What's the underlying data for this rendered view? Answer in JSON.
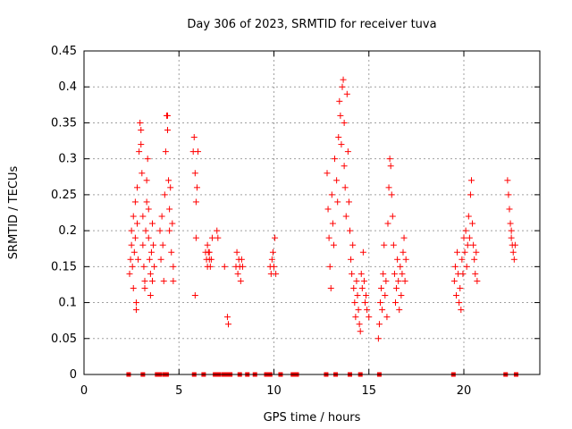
{
  "chart_data": {
    "type": "scatter",
    "title": "Day 306 of 2023, SRMTID for receiver tuva",
    "xlabel": "GPS time / hours",
    "ylabel": "SRMTID / TECUs",
    "xlim": [
      0,
      24
    ],
    "ylim": [
      0,
      0.45
    ],
    "x_ticks": [
      0,
      5,
      10,
      15,
      20
    ],
    "x_tick_labels": [
      "0",
      "5",
      "10",
      "15",
      "20"
    ],
    "y_ticks": [
      0,
      0.05,
      0.1,
      0.15,
      0.2,
      0.25,
      0.3,
      0.35,
      0.4,
      0.45
    ],
    "y_tick_labels": [
      "0",
      "0.05",
      "0.1",
      "0.15",
      "0.2",
      "0.25",
      "0.3",
      "0.35",
      "0.4",
      "0.45"
    ],
    "grid": true,
    "marker_color": "#ff0000",
    "series": [
      {
        "marker": "plus",
        "points": [
          [
            2.4,
            0.14
          ],
          [
            2.45,
            0.16
          ],
          [
            2.5,
            0.18
          ],
          [
            2.5,
            0.2
          ],
          [
            2.55,
            0.15
          ],
          [
            2.6,
            0.22
          ],
          [
            2.6,
            0.12
          ],
          [
            2.65,
            0.17
          ],
          [
            2.7,
            0.19
          ],
          [
            2.7,
            0.24
          ],
          [
            2.75,
            0.1
          ],
          [
            2.75,
            0.09
          ],
          [
            2.8,
            0.21
          ],
          [
            2.8,
            0.26
          ],
          [
            2.85,
            0.16
          ],
          [
            2.9,
            0.31
          ],
          [
            2.95,
            0.35
          ],
          [
            3.0,
            0.34
          ],
          [
            3.0,
            0.32
          ],
          [
            3.05,
            0.28
          ],
          [
            3.1,
            0.22
          ],
          [
            3.1,
            0.18
          ],
          [
            3.15,
            0.15
          ],
          [
            3.2,
            0.13
          ],
          [
            3.2,
            0.12
          ],
          [
            3.25,
            0.2
          ],
          [
            3.3,
            0.24
          ],
          [
            3.3,
            0.27
          ],
          [
            3.35,
            0.3
          ],
          [
            3.4,
            0.23
          ],
          [
            3.4,
            0.19
          ],
          [
            3.45,
            0.16
          ],
          [
            3.5,
            0.14
          ],
          [
            3.5,
            0.11
          ],
          [
            3.55,
            0.17
          ],
          [
            3.6,
            0.21
          ],
          [
            3.6,
            0.13
          ],
          [
            3.65,
            0.18
          ],
          [
            3.7,
            0.15
          ],
          [
            4.0,
            0.2
          ],
          [
            4.05,
            0.16
          ],
          [
            4.1,
            0.22
          ],
          [
            4.15,
            0.18
          ],
          [
            4.2,
            0.13
          ],
          [
            4.25,
            0.25
          ],
          [
            4.3,
            0.31
          ],
          [
            4.35,
            0.36
          ],
          [
            4.4,
            0.34
          ],
          [
            4.4,
            0.36
          ],
          [
            4.45,
            0.27
          ],
          [
            4.5,
            0.23
          ],
          [
            4.5,
            0.2
          ],
          [
            4.55,
            0.26
          ],
          [
            4.6,
            0.17
          ],
          [
            4.65,
            0.21
          ],
          [
            4.7,
            0.13
          ],
          [
            4.7,
            0.15
          ],
          [
            5.75,
            0.31
          ],
          [
            5.8,
            0.33
          ],
          [
            5.85,
            0.28
          ],
          [
            5.85,
            0.11
          ],
          [
            5.9,
            0.24
          ],
          [
            5.9,
            0.19
          ],
          [
            5.95,
            0.26
          ],
          [
            6.0,
            0.31
          ],
          [
            6.4,
            0.17
          ],
          [
            6.45,
            0.16
          ],
          [
            6.5,
            0.15
          ],
          [
            6.5,
            0.18
          ],
          [
            6.55,
            0.17
          ],
          [
            6.6,
            0.16
          ],
          [
            6.6,
            0.17
          ],
          [
            6.65,
            0.15
          ],
          [
            6.7,
            0.16
          ],
          [
            6.75,
            0.19
          ],
          [
            7.0,
            0.2
          ],
          [
            7.05,
            0.19
          ],
          [
            7.4,
            0.15
          ],
          [
            7.55,
            0.08
          ],
          [
            7.6,
            0.07
          ],
          [
            8.0,
            0.15
          ],
          [
            8.05,
            0.17
          ],
          [
            8.1,
            0.14
          ],
          [
            8.15,
            0.16
          ],
          [
            8.2,
            0.15
          ],
          [
            8.25,
            0.13
          ],
          [
            8.3,
            0.16
          ],
          [
            8.35,
            0.15
          ],
          [
            9.8,
            0.15
          ],
          [
            9.85,
            0.14
          ],
          [
            9.9,
            0.16
          ],
          [
            9.95,
            0.17
          ],
          [
            10.0,
            0.15
          ],
          [
            10.05,
            0.19
          ],
          [
            10.1,
            0.14
          ],
          [
            12.8,
            0.28
          ],
          [
            12.85,
            0.23
          ],
          [
            12.9,
            0.19
          ],
          [
            12.95,
            0.15
          ],
          [
            13.0,
            0.12
          ],
          [
            13.05,
            0.25
          ],
          [
            13.1,
            0.21
          ],
          [
            13.15,
            0.18
          ],
          [
            13.2,
            0.3
          ],
          [
            13.3,
            0.27
          ],
          [
            13.35,
            0.24
          ],
          [
            13.4,
            0.33
          ],
          [
            13.45,
            0.38
          ],
          [
            13.5,
            0.36
          ],
          [
            13.55,
            0.32
          ],
          [
            13.6,
            0.4
          ],
          [
            13.65,
            0.41
          ],
          [
            13.7,
            0.35
          ],
          [
            13.7,
            0.29
          ],
          [
            13.75,
            0.26
          ],
          [
            13.8,
            0.22
          ],
          [
            13.85,
            0.39
          ],
          [
            13.9,
            0.31
          ],
          [
            13.95,
            0.24
          ],
          [
            14.0,
            0.2
          ],
          [
            14.05,
            0.16
          ],
          [
            14.1,
            0.14
          ],
          [
            14.15,
            0.18
          ],
          [
            14.2,
            0.12
          ],
          [
            14.25,
            0.1
          ],
          [
            14.3,
            0.08
          ],
          [
            14.35,
            0.13
          ],
          [
            14.4,
            0.11
          ],
          [
            14.45,
            0.09
          ],
          [
            14.5,
            0.07
          ],
          [
            14.55,
            0.06
          ],
          [
            14.6,
            0.14
          ],
          [
            14.65,
            0.12
          ],
          [
            14.7,
            0.17
          ],
          [
            14.75,
            0.13
          ],
          [
            14.8,
            0.1
          ],
          [
            14.85,
            0.11
          ],
          [
            14.9,
            0.09
          ],
          [
            15.0,
            0.08
          ],
          [
            15.5,
            0.05
          ],
          [
            15.55,
            0.07
          ],
          [
            15.6,
            0.1
          ],
          [
            15.65,
            0.12
          ],
          [
            15.7,
            0.09
          ],
          [
            15.75,
            0.14
          ],
          [
            15.8,
            0.18
          ],
          [
            15.85,
            0.11
          ],
          [
            15.9,
            0.13
          ],
          [
            15.95,
            0.08
          ],
          [
            16.0,
            0.21
          ],
          [
            16.05,
            0.26
          ],
          [
            16.1,
            0.3
          ],
          [
            16.15,
            0.29
          ],
          [
            16.2,
            0.25
          ],
          [
            16.25,
            0.22
          ],
          [
            16.3,
            0.18
          ],
          [
            16.35,
            0.14
          ],
          [
            16.4,
            0.1
          ],
          [
            16.45,
            0.12
          ],
          [
            16.5,
            0.16
          ],
          [
            16.55,
            0.13
          ],
          [
            16.6,
            0.09
          ],
          [
            16.65,
            0.15
          ],
          [
            16.7,
            0.11
          ],
          [
            16.75,
            0.14
          ],
          [
            16.8,
            0.17
          ],
          [
            16.85,
            0.19
          ],
          [
            16.9,
            0.13
          ],
          [
            16.95,
            0.16
          ],
          [
            19.5,
            0.13
          ],
          [
            19.55,
            0.15
          ],
          [
            19.6,
            0.11
          ],
          [
            19.65,
            0.17
          ],
          [
            19.7,
            0.14
          ],
          [
            19.75,
            0.1
          ],
          [
            19.8,
            0.12
          ],
          [
            19.85,
            0.09
          ],
          [
            19.9,
            0.16
          ],
          [
            19.95,
            0.14
          ],
          [
            20.0,
            0.19
          ],
          [
            20.05,
            0.17
          ],
          [
            20.1,
            0.2
          ],
          [
            20.15,
            0.15
          ],
          [
            20.2,
            0.18
          ],
          [
            20.25,
            0.22
          ],
          [
            20.3,
            0.19
          ],
          [
            20.35,
            0.25
          ],
          [
            20.4,
            0.27
          ],
          [
            20.45,
            0.21
          ],
          [
            20.5,
            0.18
          ],
          [
            20.55,
            0.16
          ],
          [
            20.6,
            0.14
          ],
          [
            20.65,
            0.17
          ],
          [
            20.7,
            0.13
          ],
          [
            22.3,
            0.27
          ],
          [
            22.35,
            0.25
          ],
          [
            22.4,
            0.23
          ],
          [
            22.45,
            0.21
          ],
          [
            22.5,
            0.19
          ],
          [
            22.5,
            0.2
          ],
          [
            22.55,
            0.18
          ],
          [
            22.6,
            0.17
          ],
          [
            22.65,
            0.16
          ],
          [
            22.7,
            0.18
          ]
        ]
      },
      {
        "marker": "square",
        "points": [
          [
            2.35,
            0
          ],
          [
            3.1,
            0
          ],
          [
            3.85,
            0
          ],
          [
            4.0,
            0
          ],
          [
            4.25,
            0
          ],
          [
            4.35,
            0
          ],
          [
            5.8,
            0
          ],
          [
            6.3,
            0
          ],
          [
            6.9,
            0
          ],
          [
            7.1,
            0
          ],
          [
            7.35,
            0
          ],
          [
            7.55,
            0
          ],
          [
            7.7,
            0
          ],
          [
            8.2,
            0
          ],
          [
            8.6,
            0
          ],
          [
            9.0,
            0
          ],
          [
            9.6,
            0
          ],
          [
            9.8,
            0
          ],
          [
            10.35,
            0
          ],
          [
            11.0,
            0
          ],
          [
            11.2,
            0
          ],
          [
            12.75,
            0
          ],
          [
            13.25,
            0
          ],
          [
            14.0,
            0
          ],
          [
            14.55,
            0
          ],
          [
            15.55,
            0
          ],
          [
            19.45,
            0
          ],
          [
            22.2,
            0
          ],
          [
            22.75,
            0
          ]
        ]
      }
    ]
  }
}
